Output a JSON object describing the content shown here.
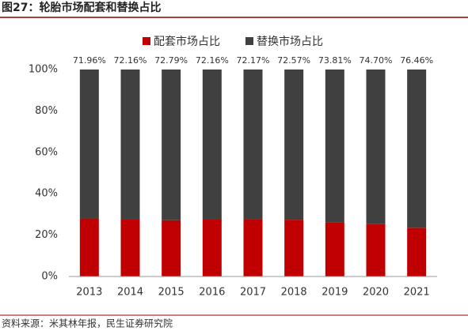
{
  "chart_data": {
    "type": "stacked_bar",
    "title": "图27：轮胎市场配套和替换占比",
    "source": "资料来源：米其林年报，民生证券研究院",
    "categories": [
      "2013",
      "2014",
      "2015",
      "2016",
      "2017",
      "2018",
      "2019",
      "2020",
      "2021"
    ],
    "series": [
      {
        "name": "配套市场占比",
        "color": "#c00000",
        "values": [
          28.04,
          27.84,
          27.21,
          27.84,
          27.83,
          27.43,
          26.19,
          25.3,
          23.54
        ]
      },
      {
        "name": "替换市场占比",
        "color": "#404040",
        "values": [
          71.96,
          72.16,
          72.79,
          72.16,
          72.17,
          72.57,
          73.81,
          74.7,
          76.46
        ],
        "value_labels": [
          "71.96%",
          "72.16%",
          "72.79%",
          "72.16%",
          "72.17%",
          "72.57%",
          "73.81%",
          "74.70%",
          "76.46%"
        ]
      }
    ],
    "ylim": [
      0,
      100
    ],
    "yticks": [
      {
        "value": 0,
        "label": "0%"
      },
      {
        "value": 20,
        "label": "20%"
      },
      {
        "value": 40,
        "label": "40%"
      },
      {
        "value": 60,
        "label": "60%"
      },
      {
        "value": 80,
        "label": "80%"
      },
      {
        "value": 100,
        "label": "100%"
      }
    ],
    "legend": "top"
  }
}
